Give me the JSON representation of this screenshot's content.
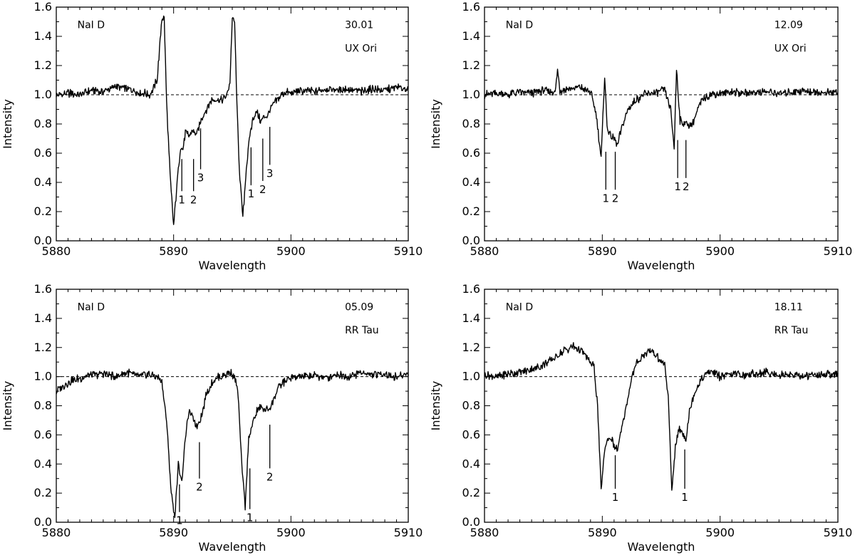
{
  "chart_data": [
    {
      "type": "line",
      "xlabel": "Wavelength",
      "ylabel": "Intensity",
      "xlim": [
        5880,
        5910
      ],
      "ylim": [
        0.0,
        1.6
      ],
      "x_ticks": [
        "5880",
        "5890",
        "5900",
        "5910"
      ],
      "y_ticks": [
        "0.0",
        "0.2",
        "0.4",
        "0.6",
        "0.8",
        "1.0",
        "1.2",
        "1.4",
        "1.6"
      ],
      "reference_line": 1.0,
      "annotations": [
        "NaI D",
        "30.01",
        "UX Ori"
      ],
      "components": [
        {
          "label": "1",
          "x": 5890.7,
          "y_top": 0.56,
          "y_bottom": 0.34
        },
        {
          "label": "2",
          "x": 5891.7,
          "y_top": 0.56,
          "y_bottom": 0.34
        },
        {
          "label": "3",
          "x": 5892.3,
          "y_top": 0.77,
          "y_bottom": 0.49
        },
        {
          "label": "1",
          "x": 5896.6,
          "y_top": 0.64,
          "y_bottom": 0.38
        },
        {
          "label": "2",
          "x": 5897.6,
          "y_top": 0.7,
          "y_bottom": 0.41
        },
        {
          "label": "3",
          "x": 5898.2,
          "y_top": 0.78,
          "y_bottom": 0.52
        }
      ],
      "series": [
        {
          "x": [
            5880,
            5881,
            5882,
            5883,
            5884,
            5885,
            5886,
            5887,
            5888,
            5888.6,
            5889.0,
            5889.2,
            5889.4,
            5889.7,
            5890.0,
            5890.3,
            5890.6,
            5890.8,
            5891.0,
            5891.3,
            5891.6,
            5892.0,
            5892.4,
            5892.8,
            5893.2,
            5893.6,
            5894.0,
            5894.5,
            5894.8,
            5895.0,
            5895.2,
            5895.4,
            5895.6,
            5895.9,
            5896.2,
            5896.5,
            5896.8,
            5897.1,
            5897.4,
            5897.7,
            5898.0,
            5898.4,
            5898.8,
            5899.2,
            5899.6,
            5900,
            5901,
            5902,
            5903,
            5904,
            5905,
            5906,
            5907,
            5908,
            5909,
            5910
          ],
          "y": [
            0.99,
            1.01,
            1.0,
            1.03,
            1.02,
            1.06,
            1.04,
            1.02,
            1.0,
            1.1,
            1.53,
            1.52,
            0.95,
            0.45,
            0.1,
            0.4,
            0.65,
            0.62,
            0.74,
            0.72,
            0.75,
            0.73,
            0.84,
            0.9,
            0.96,
            0.97,
            0.96,
            0.99,
            1.08,
            1.52,
            1.5,
            0.92,
            0.5,
            0.16,
            0.5,
            0.72,
            0.85,
            0.88,
            0.82,
            0.84,
            0.86,
            0.92,
            0.96,
            1.0,
            1.02,
            1.01,
            1.03,
            1.02,
            1.04,
            1.03,
            1.04,
            1.02,
            1.04,
            1.03,
            1.05,
            1.04
          ]
        }
      ]
    },
    {
      "type": "line",
      "xlabel": "Wavelength",
      "ylabel": "Intensity",
      "xlim": [
        5880,
        5910
      ],
      "ylim": [
        0.0,
        1.6
      ],
      "x_ticks": [
        "5880",
        "5890",
        "5900",
        "5910"
      ],
      "y_ticks": [
        "0.0",
        "0.2",
        "0.4",
        "0.6",
        "0.8",
        "1.0",
        "1.2",
        "1.4",
        "1.6"
      ],
      "reference_line": 1.0,
      "annotations": [
        "NaI D",
        "12.09",
        "UX Ori"
      ],
      "components": [
        {
          "label": "1",
          "x": 5890.3,
          "y_top": 0.61,
          "y_bottom": 0.35
        },
        {
          "label": "2",
          "x": 5891.1,
          "y_top": 0.61,
          "y_bottom": 0.35
        },
        {
          "label": "1",
          "x": 5896.4,
          "y_top": 0.69,
          "y_bottom": 0.43
        },
        {
          "label": "2",
          "x": 5897.1,
          "y_top": 0.69,
          "y_bottom": 0.43
        }
      ],
      "series": [
        {
          "x": [
            5880,
            5881,
            5882,
            5883,
            5884,
            5885,
            5886.0,
            5886.2,
            5886.4,
            5887,
            5888,
            5889.0,
            5889.5,
            5889.9,
            5890.2,
            5890.4,
            5890.7,
            5891.0,
            5891.3,
            5891.7,
            5892.2,
            5892.8,
            5893.5,
            5894.2,
            5894.8,
            5895.3,
            5895.8,
            5896.1,
            5896.3,
            5896.6,
            5896.9,
            5897.2,
            5897.6,
            5898.0,
            5898.5,
            5899,
            5900,
            5901,
            5902,
            5903,
            5904,
            5905,
            5906,
            5907,
            5908,
            5909,
            5910
          ],
          "y": [
            1.0,
            1.01,
            1.0,
            1.02,
            1.01,
            1.03,
            1.02,
            1.17,
            1.03,
            1.04,
            1.05,
            1.02,
            0.86,
            0.56,
            1.13,
            0.78,
            0.72,
            0.7,
            0.66,
            0.79,
            0.9,
            0.96,
            1.0,
            1.01,
            1.02,
            1.03,
            0.9,
            0.63,
            1.18,
            0.82,
            0.81,
            0.8,
            0.79,
            0.88,
            0.97,
            1.0,
            1.01,
            1.02,
            1.01,
            1.02,
            1.02,
            1.01,
            1.02,
            1.03,
            1.02,
            1.01,
            1.02
          ]
        }
      ]
    },
    {
      "type": "line",
      "xlabel": "Wavelength",
      "ylabel": "Intensity",
      "xlim": [
        5880,
        5910
      ],
      "ylim": [
        0.0,
        1.6
      ],
      "x_ticks": [
        "5880",
        "5890",
        "5900",
        "5910"
      ],
      "y_ticks": [
        "0.0",
        "0.2",
        "0.4",
        "0.6",
        "0.8",
        "1.0",
        "1.2",
        "1.4",
        "1.6"
      ],
      "reference_line": 1.0,
      "annotations": [
        "NaI D",
        "05.09",
        "RR Tau"
      ],
      "components": [
        {
          "label": "1",
          "x": 5890.5,
          "y_top": 0.26,
          "y_bottom": 0.07
        },
        {
          "label": "2",
          "x": 5892.2,
          "y_top": 0.55,
          "y_bottom": 0.3
        },
        {
          "label": "1",
          "x": 5896.5,
          "y_top": 0.37,
          "y_bottom": 0.09
        },
        {
          "label": "2",
          "x": 5898.2,
          "y_top": 0.67,
          "y_bottom": 0.37
        }
      ],
      "series": [
        {
          "x": [
            5880,
            5880.5,
            5881,
            5882,
            5883,
            5884,
            5885,
            5886,
            5887,
            5888,
            5888.6,
            5889.0,
            5889.4,
            5889.8,
            5890.1,
            5890.4,
            5890.7,
            5891.0,
            5891.3,
            5891.7,
            5892.0,
            5892.4,
            5892.8,
            5893.3,
            5893.8,
            5894.3,
            5894.8,
            5895.2,
            5895.5,
            5895.8,
            5896.1,
            5896.4,
            5896.7,
            5897.0,
            5897.4,
            5897.8,
            5898.3,
            5898.8,
            5899.3,
            5900,
            5901,
            5902,
            5903,
            5904,
            5905,
            5906,
            5907,
            5908,
            5909,
            5910
          ],
          "y": [
            0.9,
            0.93,
            0.96,
            0.99,
            1.01,
            1.02,
            1.0,
            1.03,
            1.0,
            1.02,
            1.0,
            0.96,
            0.7,
            0.2,
            0.04,
            0.39,
            0.28,
            0.58,
            0.76,
            0.71,
            0.66,
            0.74,
            0.88,
            0.96,
            1.0,
            1.01,
            1.03,
            1.0,
            0.88,
            0.4,
            0.1,
            0.58,
            0.66,
            0.75,
            0.79,
            0.77,
            0.8,
            0.9,
            0.96,
            0.99,
            1.0,
            1.01,
            0.99,
            1.02,
            1.0,
            1.03,
            1.01,
            1.02,
            1.0,
            1.02
          ]
        }
      ]
    },
    {
      "type": "line",
      "xlabel": "Wavelength",
      "ylabel": "Intensity",
      "xlim": [
        5880,
        5910
      ],
      "ylim": [
        0.0,
        1.6
      ],
      "x_ticks": [
        "5880",
        "5890",
        "5900",
        "5910"
      ],
      "y_ticks": [
        "0.0",
        "0.2",
        "0.4",
        "0.6",
        "0.8",
        "1.0",
        "1.2",
        "1.4",
        "1.6"
      ],
      "reference_line": 1.0,
      "annotations": [
        "NaI D",
        "18.11",
        "RR Tau"
      ],
      "components": [
        {
          "label": "1",
          "x": 5891.1,
          "y_top": 0.46,
          "y_bottom": 0.23
        },
        {
          "label": "1",
          "x": 5897.0,
          "y_top": 0.5,
          "y_bottom": 0.23
        }
      ],
      "series": [
        {
          "x": [
            5880,
            5881,
            5882,
            5883,
            5884,
            5885,
            5886,
            5886.8,
            5887.5,
            5888.2,
            5888.8,
            5889.3,
            5889.6,
            5889.9,
            5890.2,
            5890.5,
            5890.8,
            5891.0,
            5891.3,
            5891.6,
            5892.0,
            5892.5,
            5893.0,
            5893.6,
            5894.2,
            5894.8,
            5895.3,
            5895.6,
            5895.9,
            5896.2,
            5896.5,
            5896.8,
            5897.1,
            5897.4,
            5897.8,
            5898.3,
            5898.8,
            5899.3,
            5900,
            5901,
            5902,
            5903,
            5904,
            5905,
            5906,
            5907,
            5908,
            5909,
            5910
          ],
          "y": [
            1.01,
            1.0,
            1.02,
            1.03,
            1.05,
            1.08,
            1.13,
            1.18,
            1.21,
            1.18,
            1.12,
            1.06,
            0.8,
            0.22,
            0.5,
            0.58,
            0.57,
            0.52,
            0.5,
            0.62,
            0.78,
            1.0,
            1.1,
            1.16,
            1.18,
            1.12,
            1.08,
            0.85,
            0.21,
            0.52,
            0.64,
            0.62,
            0.57,
            0.76,
            0.88,
            0.97,
            1.02,
            1.04,
            1.0,
            1.02,
            1.01,
            1.02,
            1.03,
            1.01,
            1.02,
            1.0,
            1.01,
            1.02,
            1.01
          ]
        }
      ]
    }
  ]
}
